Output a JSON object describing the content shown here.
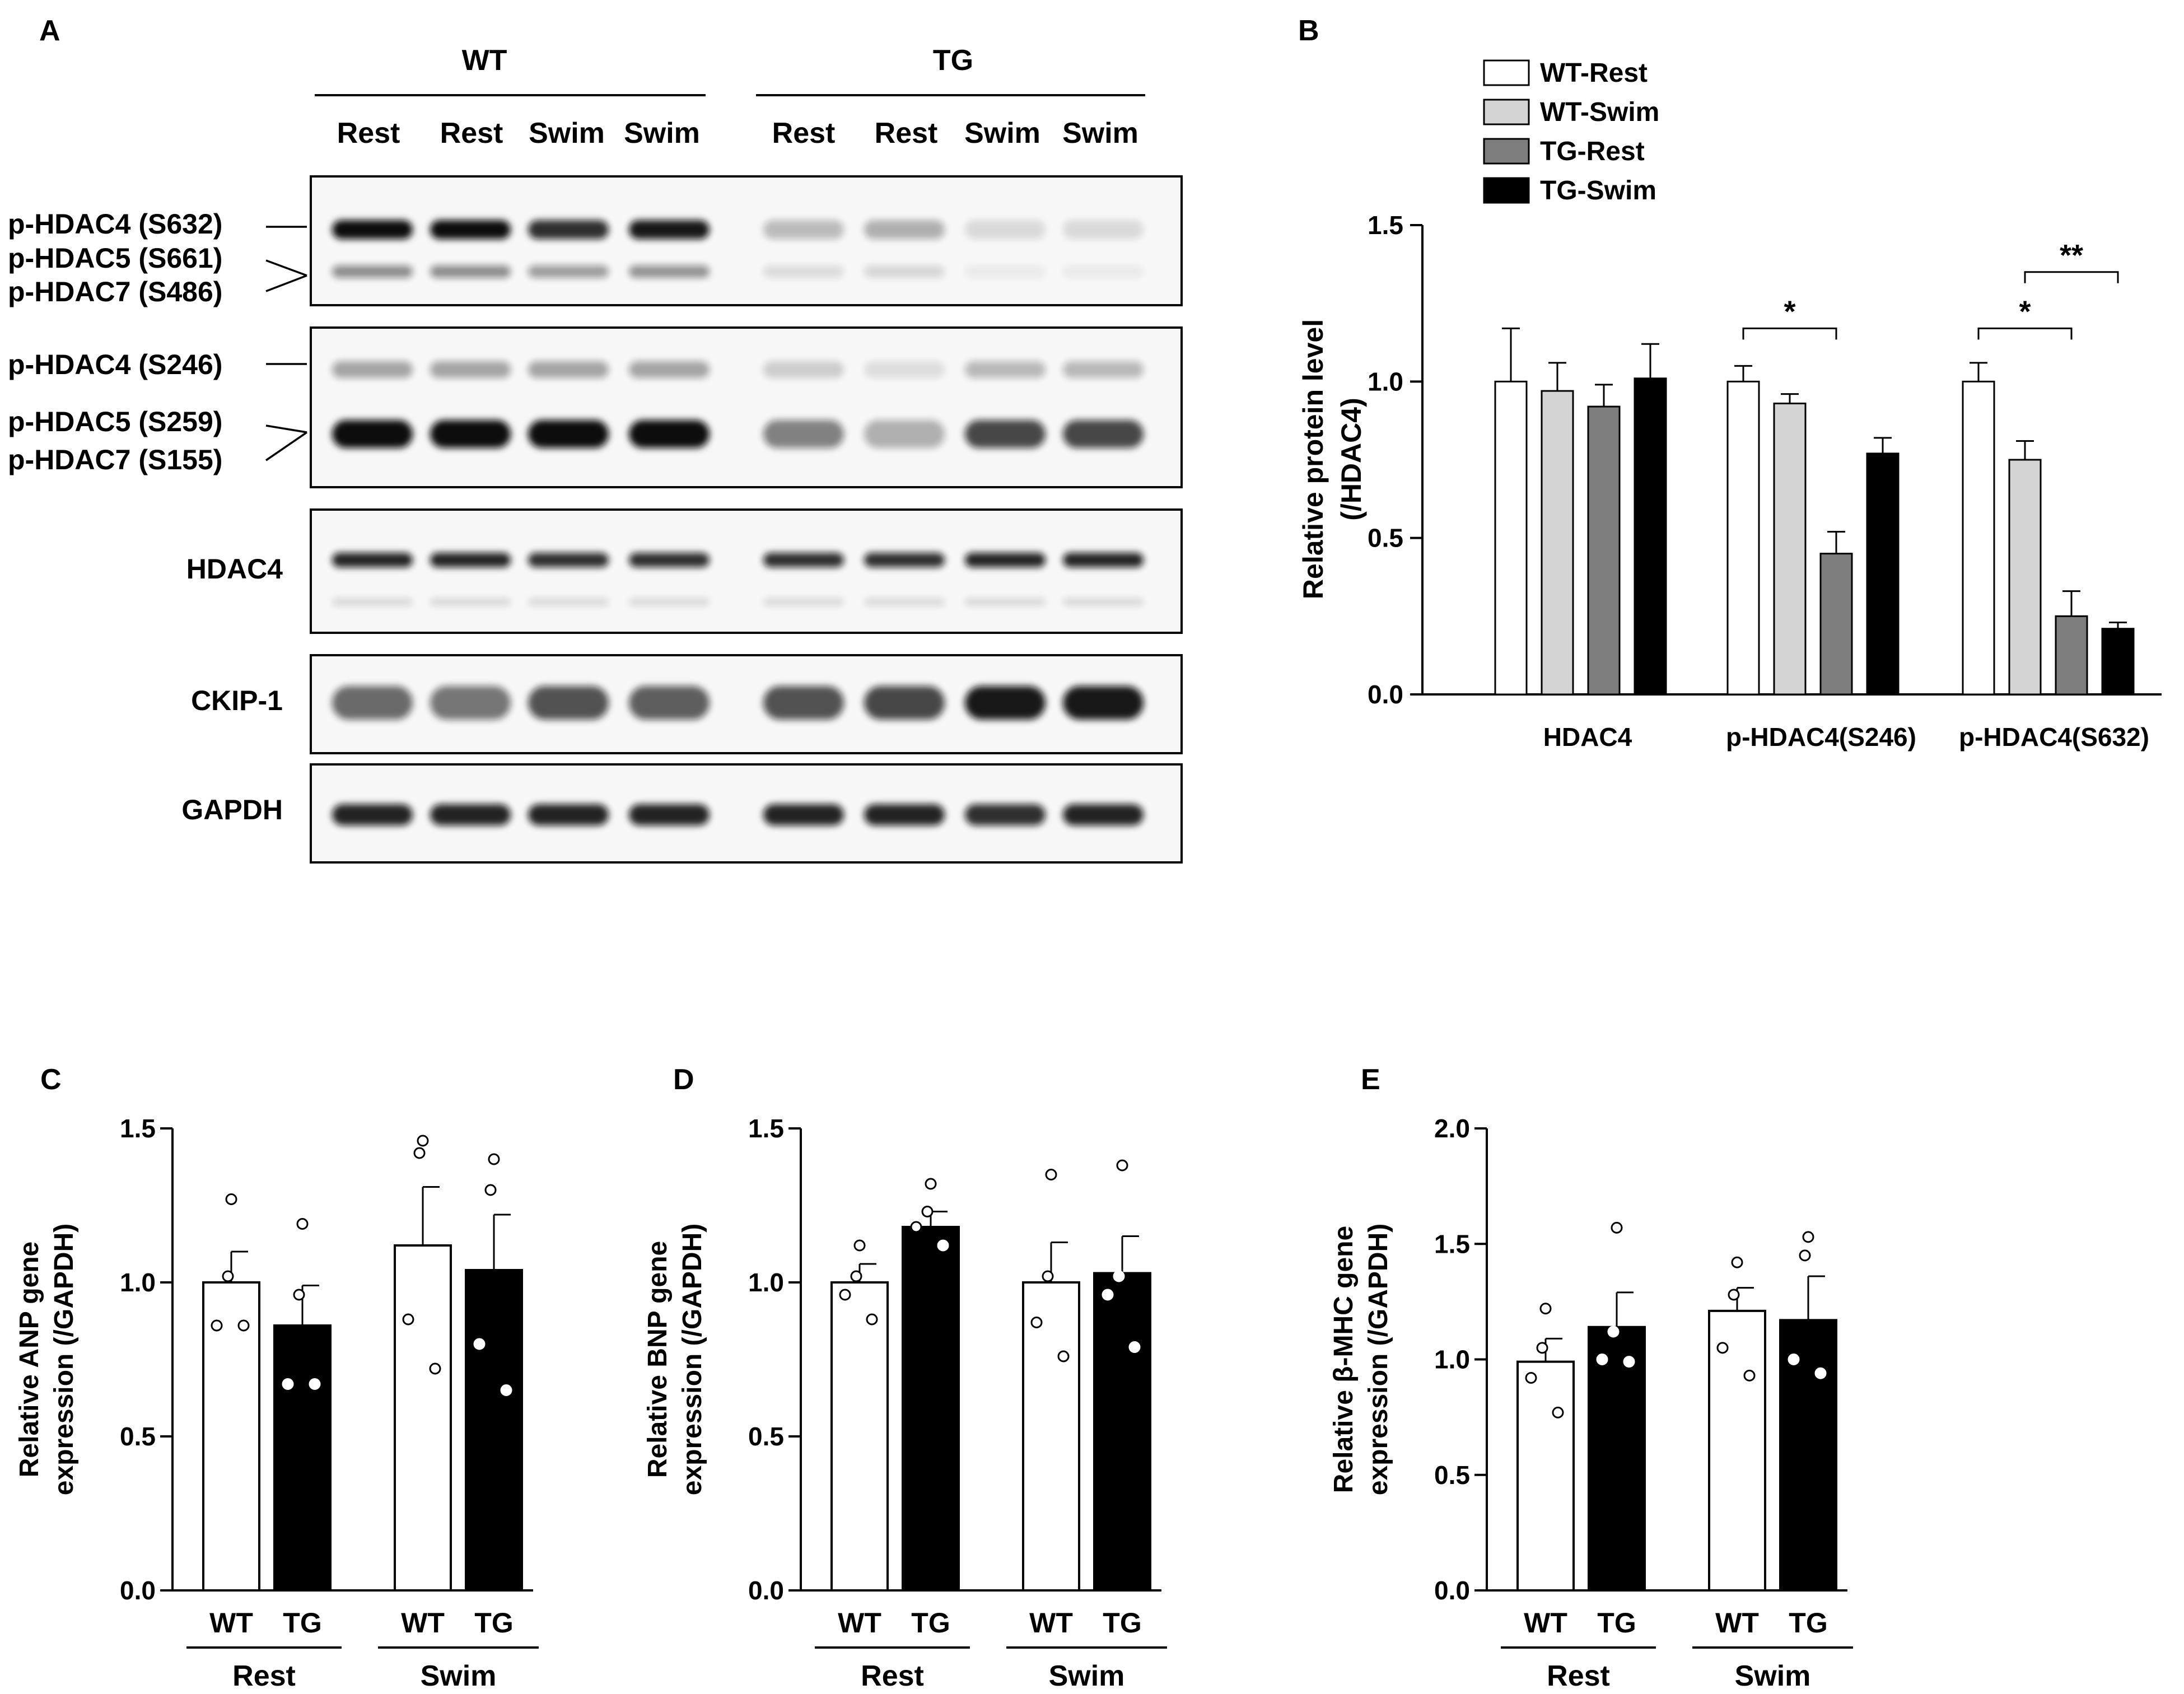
{
  "panel_letters": [
    "A",
    "B",
    "C",
    "D",
    "E"
  ],
  "colors": {
    "wt_rest": "#ffffff",
    "wt_swim": "#d4d4d4",
    "tg_rest": "#7d7d7d",
    "tg_swim": "#000000",
    "blot_bg": "#f7f7f7",
    "band": "#111111"
  },
  "blot": {
    "groups": [
      "WT",
      "TG"
    ],
    "lanes": [
      "Rest",
      "Rest",
      "Swim",
      "Swim",
      "Rest",
      "Rest",
      "Swim",
      "Swim"
    ],
    "label_sets": [
      [
        "p-HDAC4 (S632)",
        "p-HDAC5 (S661)",
        "p-HDAC7 (S486)"
      ],
      [
        "p-HDAC4 (S246)",
        "p-HDAC5 (S259)",
        "p-HDAC7 (S155)"
      ],
      [
        "HDAC4"
      ],
      [
        "CKIP-1"
      ],
      [
        "GAPDH"
      ]
    ],
    "band_levels": [
      [
        1.0,
        1.0,
        0.85,
        0.95,
        0.25,
        0.3,
        0.12,
        0.12
      ],
      [
        1.0,
        1.0,
        1.0,
        1.0,
        0.5,
        0.3,
        0.75,
        0.75
      ],
      [
        0.9,
        0.9,
        0.85,
        0.85,
        0.85,
        0.85,
        0.9,
        0.9
      ],
      [
        0.6,
        0.55,
        0.7,
        0.65,
        0.7,
        0.75,
        0.95,
        0.95
      ],
      [
        0.9,
        0.9,
        0.9,
        0.9,
        0.9,
        0.9,
        0.85,
        0.9
      ]
    ]
  },
  "chart_data": [
    {
      "type": "bar",
      "panel": "B",
      "title": "",
      "xlabel": "",
      "ylabel": "Relative protein level (/HDAC4)",
      "ylim": [
        0,
        1.5
      ],
      "yticks": [
        "0.0",
        "0.5",
        "1.0",
        "1.5"
      ],
      "categories": [
        "HDAC4",
        "p-HDAC4(S246)",
        "p-HDAC4(S632)"
      ],
      "legend_position": "top-left",
      "series": [
        {
          "name": "WT-Rest",
          "values": [
            1.0,
            1.0,
            1.0
          ],
          "errors": [
            0.17,
            0.05,
            0.06
          ]
        },
        {
          "name": "WT-Swim",
          "values": [
            0.97,
            0.93,
            0.75
          ],
          "errors": [
            0.09,
            0.03,
            0.06
          ]
        },
        {
          "name": "TG-Rest",
          "values": [
            0.92,
            0.45,
            0.25
          ],
          "errors": [
            0.07,
            0.07,
            0.08
          ]
        },
        {
          "name": "TG-Swim",
          "values": [
            1.01,
            0.77,
            0.21
          ],
          "errors": [
            0.11,
            0.05,
            0.02
          ]
        }
      ],
      "significance": [
        {
          "label": "*",
          "category": "p-HDAC4(S246)",
          "from": "WT-Rest",
          "to": "TG-Rest",
          "level": 1.17
        },
        {
          "label": "*",
          "category": "p-HDAC4(S632)",
          "from": "WT-Rest",
          "to": "TG-Rest",
          "level": 1.17
        },
        {
          "label": "**",
          "category": "p-HDAC4(S632)",
          "from": "WT-Swim",
          "to": "TG-Swim",
          "level": 1.35
        }
      ]
    },
    {
      "type": "bar",
      "panel": "C",
      "title": "",
      "xlabel": "",
      "ylabel": [
        "Relative ANP gene",
        "expression (/GAPDH)"
      ],
      "ylim": [
        0,
        1.5
      ],
      "yticks": [
        "0.0",
        "0.5",
        "1.0",
        "1.5"
      ],
      "categories": [
        "WT",
        "TG",
        "WT",
        "TG"
      ],
      "groups": [
        "Rest",
        "Swim"
      ],
      "values": [
        1.0,
        0.86,
        1.12,
        1.04
      ],
      "errors": [
        0.1,
        0.13,
        0.19,
        0.18
      ],
      "points": [
        [
          1.27,
          1.02,
          0.86,
          0.86
        ],
        [
          1.19,
          0.96,
          0.67,
          0.67
        ],
        [
          1.46,
          1.42,
          0.88,
          0.72
        ],
        [
          1.4,
          1.3,
          0.8,
          0.65
        ]
      ]
    },
    {
      "type": "bar",
      "panel": "D",
      "title": "",
      "xlabel": "",
      "ylabel": [
        "Relative BNP gene",
        "expression (/GAPDH)"
      ],
      "ylim": [
        0,
        1.5
      ],
      "yticks": [
        "0.0",
        "0.5",
        "1.0",
        "1.5"
      ],
      "categories": [
        "WT",
        "TG",
        "WT",
        "TG"
      ],
      "groups": [
        "Rest",
        "Swim"
      ],
      "values": [
        1.0,
        1.18,
        1.0,
        1.03
      ],
      "errors": [
        0.06,
        0.05,
        0.13,
        0.12
      ],
      "points": [
        [
          1.12,
          1.02,
          0.96,
          0.88
        ],
        [
          1.32,
          1.23,
          1.18,
          1.12
        ],
        [
          1.35,
          1.02,
          0.87,
          0.76
        ],
        [
          1.38,
          1.02,
          0.96,
          0.79
        ]
      ]
    },
    {
      "type": "bar",
      "panel": "E",
      "title": "",
      "xlabel": "",
      "ylabel": [
        "Relative β-MHC gene",
        "expression (/GAPDH)"
      ],
      "ylim": [
        0,
        2.0
      ],
      "yticks": [
        "0.0",
        "0.5",
        "1.0",
        "1.5",
        "2.0"
      ],
      "categories": [
        "WT",
        "TG",
        "WT",
        "TG"
      ],
      "groups": [
        "Rest",
        "Swim"
      ],
      "values": [
        0.99,
        1.14,
        1.21,
        1.17
      ],
      "errors": [
        0.1,
        0.15,
        0.1,
        0.19
      ],
      "points": [
        [
          1.22,
          1.05,
          0.92,
          0.77
        ],
        [
          1.57,
          1.12,
          1.0,
          0.99
        ],
        [
          1.42,
          1.28,
          1.05,
          0.93
        ],
        [
          1.53,
          1.45,
          1.0,
          0.94
        ]
      ]
    }
  ]
}
